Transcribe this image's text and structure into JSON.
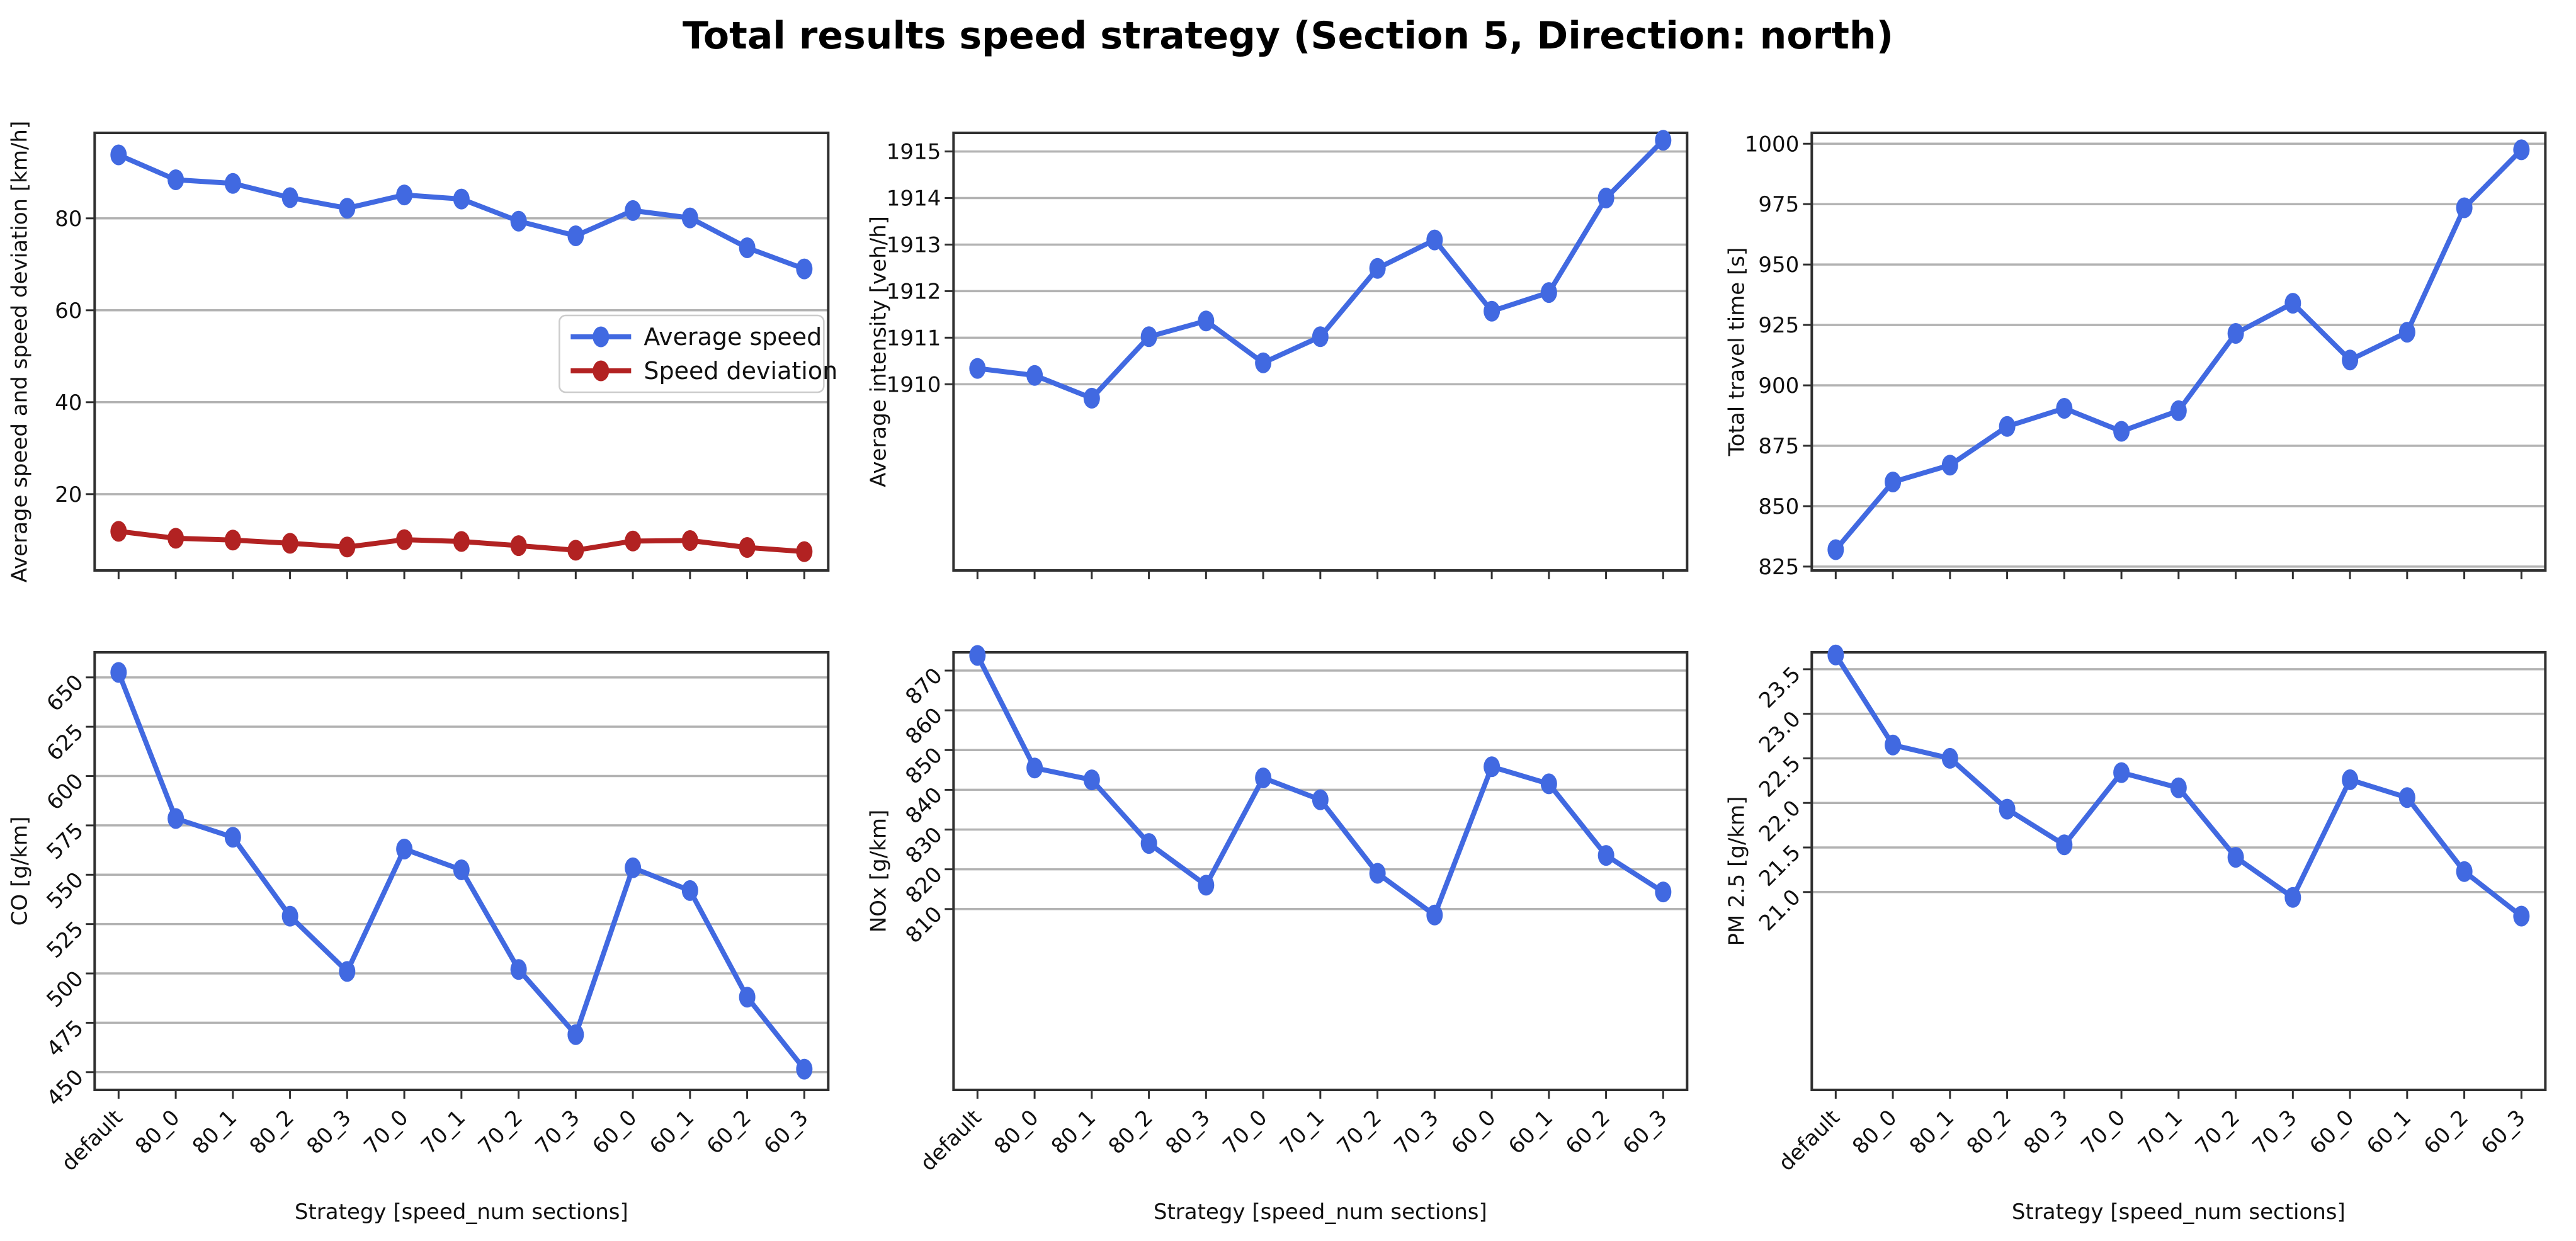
{
  "figure_title": "Total results speed strategy (Section 5, Direction: north)",
  "x_axis": {
    "label": "Strategy [speed_num sections]",
    "categories": [
      "default",
      "80_0",
      "80_1",
      "80_2",
      "80_3",
      "70_0",
      "70_1",
      "70_2",
      "70_3",
      "60_0",
      "60_1",
      "60_2",
      "60_3"
    ]
  },
  "style": {
    "series_blue": "#4169E1",
    "series_red": "#B22222",
    "grid_color": "#b3b3b3",
    "spine_color": "#303030",
    "text_color": "#111111",
    "legend_border": "#cccccc"
  },
  "chart_data": [
    {
      "type": "line",
      "ylabel": "Average speed and speed deviation [km/h]",
      "ylim": [
        3.4,
        98.6
      ],
      "yticks": [
        20,
        40,
        60,
        80
      ],
      "ytick_decimals": 0,
      "ytick_rotation": 0,
      "show_xticklabels": false,
      "show_xlabel": false,
      "grid": true,
      "legend": {
        "visible": true,
        "position": "center-right"
      },
      "series": [
        {
          "name": "Average speed",
          "color": "#4169E1",
          "values": [
            93.8,
            88.4,
            87.6,
            84.5,
            82.2,
            85.1,
            84.2,
            79.4,
            76.2,
            81.7,
            80.1,
            73.6,
            69.0
          ]
        },
        {
          "name": "Speed deviation",
          "color": "#B22222",
          "values": [
            11.9,
            10.4,
            10.0,
            9.3,
            8.5,
            10.1,
            9.7,
            8.8,
            7.8,
            9.8,
            9.9,
            8.4,
            7.5
          ]
        }
      ]
    },
    {
      "type": "line",
      "ylabel": "Average intensity [veh/h]",
      "ylim": [
        1906.0,
        1915.4
      ],
      "yticks": [
        1910,
        1911,
        1912,
        1913,
        1914,
        1915
      ],
      "ytick_decimals": 0,
      "ytick_rotation": 0,
      "show_xticklabels": false,
      "show_xlabel": false,
      "grid": true,
      "legend": {
        "visible": false
      },
      "series": [
        {
          "name": "Average intensity",
          "color": "#4169E1",
          "values": [
            1910.34,
            1910.19,
            1909.7,
            1911.02,
            1911.36,
            1910.46,
            1911.02,
            1912.49,
            1913.1,
            1911.57,
            1911.97,
            1914.0,
            1915.24
          ]
        }
      ]
    },
    {
      "type": "line",
      "ylabel": "Total travel time [s]",
      "ylim": [
        823.4,
        1004.5
      ],
      "yticks": [
        825,
        850,
        875,
        900,
        925,
        950,
        975,
        1000
      ],
      "ytick_decimals": 0,
      "ytick_rotation": 0,
      "show_xticklabels": false,
      "show_xlabel": false,
      "grid": true,
      "legend": {
        "visible": false
      },
      "series": [
        {
          "name": "Total travel time",
          "color": "#4169E1",
          "values": [
            832,
            860,
            867,
            883,
            890.5,
            881,
            889.5,
            921.5,
            934,
            910.5,
            922,
            973.5,
            997.5
          ]
        }
      ]
    },
    {
      "type": "line",
      "ylabel": "CO [g/km]",
      "ylim": [
        441.0,
        662.7
      ],
      "yticks": [
        450,
        475,
        500,
        525,
        550,
        575,
        600,
        625,
        650
      ],
      "ytick_decimals": 0,
      "ytick_rotation": 45,
      "show_xticklabels": true,
      "show_xlabel": true,
      "grid": true,
      "legend": {
        "visible": false
      },
      "series": [
        {
          "name": "CO",
          "color": "#4169E1",
          "values": [
            652.5,
            578.5,
            569,
            529,
            501,
            563,
            552.5,
            502,
            469,
            553.5,
            542,
            488,
            451.5
          ]
        }
      ]
    },
    {
      "type": "line",
      "ylabel": "NOx [g/km]",
      "ylim": [
        764.5,
        874.6
      ],
      "yticks": [
        810,
        820,
        830,
        840,
        850,
        860,
        870
      ],
      "ytick_decimals": 0,
      "ytick_rotation": 45,
      "show_xticklabels": true,
      "show_xlabel": true,
      "grid": true,
      "legend": {
        "visible": false
      },
      "series": [
        {
          "name": "NOx",
          "color": "#4169E1",
          "values": [
            873.8,
            845.5,
            842.5,
            826.5,
            816,
            843,
            837.5,
            819,
            808.5,
            845.8,
            841.5,
            823.5,
            814.3
          ]
        }
      ]
    },
    {
      "type": "line",
      "ylabel": "PM 2.5 [g/km]",
      "ylim": [
        18.78,
        23.69
      ],
      "yticks": [
        21.0,
        21.5,
        22.0,
        22.5,
        23.0,
        23.5
      ],
      "ytick_decimals": 1,
      "ytick_rotation": 45,
      "show_xticklabels": true,
      "show_xlabel": true,
      "grid": true,
      "legend": {
        "visible": false
      },
      "series": [
        {
          "name": "PM 2.5",
          "color": "#4169E1",
          "values": [
            23.66,
            22.65,
            22.5,
            21.93,
            21.53,
            22.34,
            22.17,
            21.39,
            20.94,
            22.26,
            22.06,
            21.23,
            20.73
          ]
        }
      ]
    }
  ]
}
